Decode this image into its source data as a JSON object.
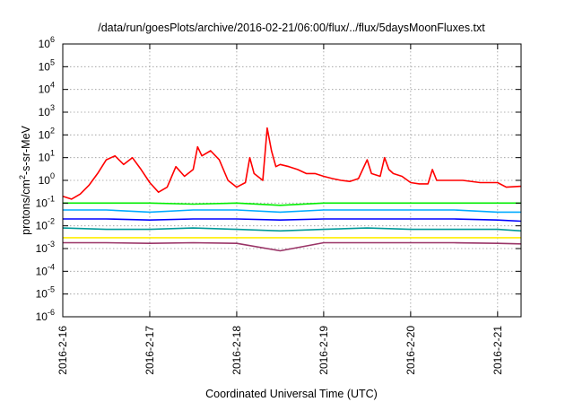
{
  "chart_data": {
    "type": "line",
    "title": "/data/run/goesPlots/archive/2016-02-21/06:00/flux/../flux/5daysMoonFluxes.txt",
    "xlabel": "Coordinated Universal Time (UTC)",
    "ylabel_parts": [
      "protons/cm",
      "2",
      "-s-sr-MeV"
    ],
    "y_scale": "log",
    "ylim": [
      1e-06,
      1000000.0
    ],
    "y_ticks": [
      {
        "base": "10",
        "exp": "-6",
        "value": 1e-06
      },
      {
        "base": "10",
        "exp": "-5",
        "value": 1e-05
      },
      {
        "base": "10",
        "exp": "-4",
        "value": 0.0001
      },
      {
        "base": "10",
        "exp": "-3",
        "value": 0.001
      },
      {
        "base": "10",
        "exp": "-2",
        "value": 0.01
      },
      {
        "base": "10",
        "exp": "-1",
        "value": 0.1
      },
      {
        "base": "10",
        "exp": "0",
        "value": 1
      },
      {
        "base": "10",
        "exp": "1",
        "value": 10
      },
      {
        "base": "10",
        "exp": "2",
        "value": 100
      },
      {
        "base": "10",
        "exp": "3",
        "value": 1000
      },
      {
        "base": "10",
        "exp": "4",
        "value": 10000
      },
      {
        "base": "10",
        "exp": "5",
        "value": 100000
      },
      {
        "base": "10",
        "exp": "6",
        "value": 1000000
      }
    ],
    "x_ticks": [
      "2016-2-16",
      "2016-2-17",
      "2016-2-18",
      "2016-2-19",
      "2016-2-20",
      "2016-2-21"
    ],
    "xlim_days": [
      0,
      5.27
    ],
    "grid": true,
    "legend": "none",
    "series": [
      {
        "color": "#ff0000",
        "points": [
          [
            0,
            0.2
          ],
          [
            0.1,
            0.15
          ],
          [
            0.2,
            0.25
          ],
          [
            0.3,
            0.6
          ],
          [
            0.4,
            2
          ],
          [
            0.5,
            8
          ],
          [
            0.6,
            12
          ],
          [
            0.7,
            5
          ],
          [
            0.8,
            10
          ],
          [
            0.9,
            3
          ],
          [
            1.0,
            0.8
          ],
          [
            1.1,
            0.3
          ],
          [
            1.2,
            0.5
          ],
          [
            1.3,
            4
          ],
          [
            1.4,
            1.5
          ],
          [
            1.5,
            3
          ],
          [
            1.55,
            30
          ],
          [
            1.6,
            12
          ],
          [
            1.7,
            20
          ],
          [
            1.8,
            8
          ],
          [
            1.9,
            1
          ],
          [
            2.0,
            0.5
          ],
          [
            2.1,
            0.8
          ],
          [
            2.15,
            10
          ],
          [
            2.2,
            2
          ],
          [
            2.3,
            1
          ],
          [
            2.35,
            200
          ],
          [
            2.4,
            20
          ],
          [
            2.45,
            4
          ],
          [
            2.5,
            5
          ],
          [
            2.6,
            4
          ],
          [
            2.7,
            3
          ],
          [
            2.8,
            2
          ],
          [
            2.9,
            2
          ],
          [
            3.0,
            1.5
          ],
          [
            3.1,
            1.2
          ],
          [
            3.2,
            1
          ],
          [
            3.3,
            0.9
          ],
          [
            3.4,
            1.2
          ],
          [
            3.5,
            8
          ],
          [
            3.55,
            2
          ],
          [
            3.65,
            1.5
          ],
          [
            3.7,
            10
          ],
          [
            3.75,
            3
          ],
          [
            3.8,
            2
          ],
          [
            3.9,
            1.5
          ],
          [
            4.0,
            0.8
          ],
          [
            4.1,
            0.7
          ],
          [
            4.2,
            0.7
          ],
          [
            4.25,
            3
          ],
          [
            4.3,
            1
          ],
          [
            4.4,
            1
          ],
          [
            4.6,
            1
          ],
          [
            4.8,
            0.8
          ],
          [
            5.0,
            0.8
          ],
          [
            5.1,
            0.5
          ],
          [
            5.27,
            0.55
          ]
        ]
      },
      {
        "color": "#00ee00",
        "points": [
          [
            0,
            0.1
          ],
          [
            0.5,
            0.1
          ],
          [
            1.0,
            0.1
          ],
          [
            1.5,
            0.09
          ],
          [
            2.0,
            0.1
          ],
          [
            2.5,
            0.08
          ],
          [
            3.0,
            0.1
          ],
          [
            3.5,
            0.1
          ],
          [
            4.0,
            0.1
          ],
          [
            4.5,
            0.1
          ],
          [
            5.0,
            0.1
          ],
          [
            5.27,
            0.1
          ]
        ]
      },
      {
        "color": "#00aaff",
        "points": [
          [
            0,
            0.05
          ],
          [
            0.5,
            0.05
          ],
          [
            1.0,
            0.04
          ],
          [
            1.5,
            0.05
          ],
          [
            2.0,
            0.05
          ],
          [
            2.5,
            0.04
          ],
          [
            3.0,
            0.05
          ],
          [
            3.5,
            0.05
          ],
          [
            4.0,
            0.05
          ],
          [
            4.5,
            0.05
          ],
          [
            5.0,
            0.04
          ],
          [
            5.27,
            0.04
          ]
        ]
      },
      {
        "color": "#0000ff",
        "points": [
          [
            0,
            0.02
          ],
          [
            0.5,
            0.02
          ],
          [
            1.0,
            0.018
          ],
          [
            1.5,
            0.02
          ],
          [
            2.0,
            0.02
          ],
          [
            2.5,
            0.018
          ],
          [
            3.0,
            0.02
          ],
          [
            3.5,
            0.02
          ],
          [
            4.0,
            0.02
          ],
          [
            4.5,
            0.02
          ],
          [
            5.0,
            0.018
          ],
          [
            5.27,
            0.016
          ]
        ]
      },
      {
        "color": "#009999",
        "points": [
          [
            0,
            0.008
          ],
          [
            0.5,
            0.007
          ],
          [
            1.0,
            0.007
          ],
          [
            1.5,
            0.008
          ],
          [
            2.0,
            0.007
          ],
          [
            2.5,
            0.006
          ],
          [
            3.0,
            0.007
          ],
          [
            3.5,
            0.008
          ],
          [
            4.0,
            0.007
          ],
          [
            4.5,
            0.007
          ],
          [
            5.0,
            0.007
          ],
          [
            5.27,
            0.006
          ]
        ]
      },
      {
        "color": "#ffee00",
        "points": [
          [
            0,
            0.003
          ],
          [
            1.0,
            0.003
          ],
          [
            2.0,
            0.003
          ],
          [
            3.0,
            0.003
          ],
          [
            4.0,
            0.003
          ],
          [
            5.0,
            0.003
          ],
          [
            5.27,
            0.003
          ]
        ]
      },
      {
        "color": "#993366",
        "points": [
          [
            0,
            0.0018
          ],
          [
            0.5,
            0.0018
          ],
          [
            1.0,
            0.0017
          ],
          [
            1.5,
            0.0018
          ],
          [
            2.0,
            0.0017
          ],
          [
            2.5,
            0.0008
          ],
          [
            3.0,
            0.0018
          ],
          [
            3.5,
            0.0018
          ],
          [
            4.0,
            0.0018
          ],
          [
            4.5,
            0.0018
          ],
          [
            5.0,
            0.0017
          ],
          [
            5.27,
            0.0016
          ]
        ]
      }
    ]
  }
}
